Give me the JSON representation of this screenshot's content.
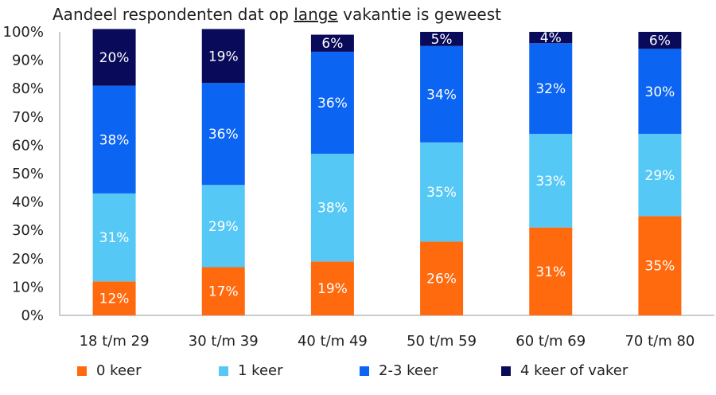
{
  "title": {
    "before": "Aandeel respondenten dat op ",
    "underlined": "lange",
    "after": " vakantie is geweest"
  },
  "chart_data": {
    "type": "bar",
    "stacked": true,
    "categories": [
      "18 t/m 29",
      "30 t/m 39",
      "40 t/m 49",
      "50 t/m 59",
      "60 t/m 69",
      "70 t/m 80"
    ],
    "ylim": [
      0,
      100
    ],
    "yticks": [
      "0%",
      "10%",
      "20%",
      "30%",
      "40%",
      "50%",
      "60%",
      "70%",
      "80%",
      "90%",
      "100%"
    ],
    "grid": false,
    "legend_position": "bottom",
    "series": [
      {
        "name": "0 keer",
        "color": "#FF6A0E",
        "values": [
          12,
          17,
          19,
          26,
          31,
          35
        ],
        "labels": [
          "12%",
          "17%",
          "19%",
          "26%",
          "31%",
          "35%"
        ]
      },
      {
        "name": "1 keer",
        "color": "#56C8F6",
        "values": [
          31,
          29,
          38,
          35,
          33,
          29
        ],
        "labels": [
          "31%",
          "29%",
          "38%",
          "35%",
          "33%",
          "29%"
        ]
      },
      {
        "name": "2-3 keer",
        "color": "#0B64F2",
        "values": [
          38,
          36,
          36,
          34,
          32,
          30
        ],
        "labels": [
          "38%",
          "36%",
          "36%",
          "34%",
          "32%",
          "30%"
        ]
      },
      {
        "name": "4 keer of vaker",
        "color": "#0A0A5A",
        "values": [
          20,
          19,
          6,
          5,
          4,
          6
        ],
        "labels": [
          "20%",
          "19%",
          "6%",
          "5%",
          "4%",
          "6%"
        ]
      }
    ]
  }
}
